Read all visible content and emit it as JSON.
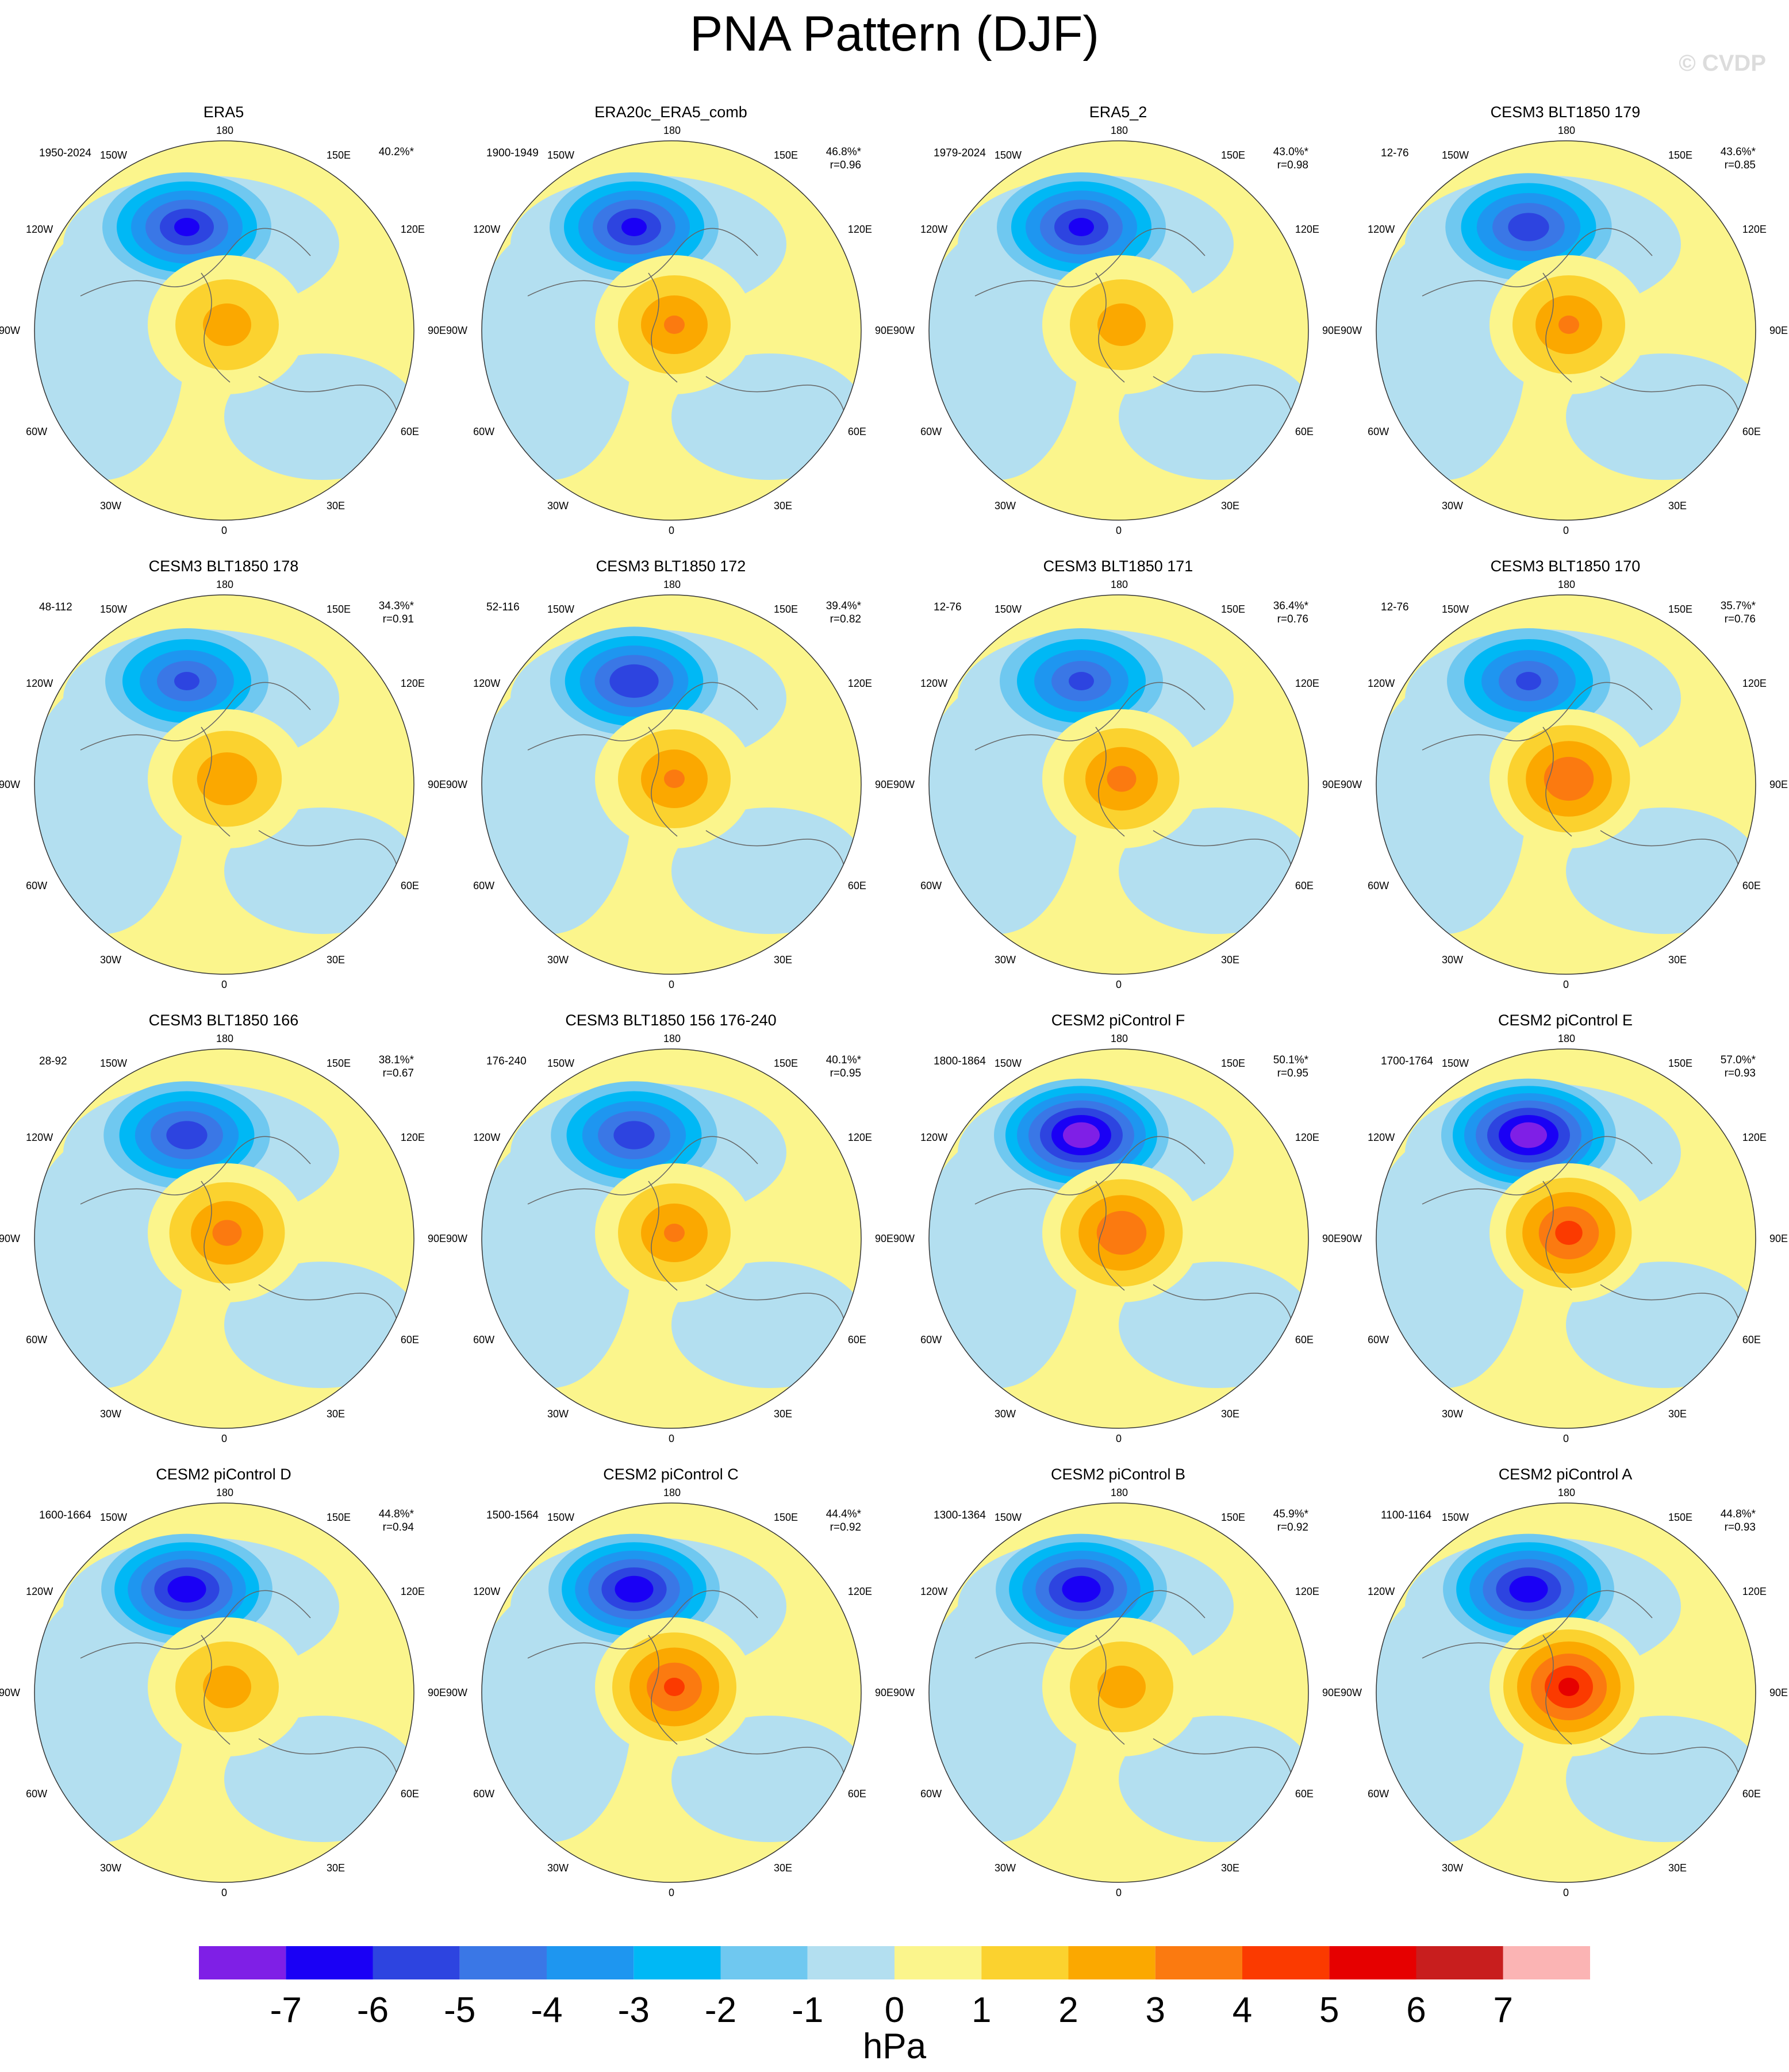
{
  "title": "PNA Pattern (DJF)",
  "watermark": "© CVDP",
  "unit": "hPa",
  "colorbar": {
    "labels": [
      "-7",
      "-6",
      "-5",
      "-4",
      "-3",
      "-2",
      "-1",
      "0",
      "1",
      "2",
      "3",
      "4",
      "5",
      "6",
      "7"
    ],
    "colors": [
      "#7f1fe6",
      "#1a00f5",
      "#2d44e0",
      "#3a77e6",
      "#1e96f0",
      "#00b8f5",
      "#6fc8f0",
      "#b3dff0",
      "#fbf58c",
      "#fbd22f",
      "#fba800",
      "#fb7a10",
      "#fb3a00",
      "#e60000",
      "#c81e1e",
      "#fbb4b4"
    ]
  },
  "lon_labels": {
    "top": "180",
    "bottom": "0",
    "left": [
      "150W",
      "120W",
      "90W",
      "60W",
      "30W"
    ],
    "right": [
      "150E",
      "120E",
      "90E",
      "60E",
      "30E"
    ]
  },
  "panels": [
    {
      "title": "ERA5",
      "period": "1950-2024",
      "pct": "40.2%*",
      "r": ""
    },
    {
      "title": "ERA20c_ERA5_comb",
      "period": "1900-1949",
      "pct": "46.8%*",
      "r": "r=0.96"
    },
    {
      "title": "ERA5_2",
      "period": "1979-2024",
      "pct": "43.0%*",
      "r": "r=0.98"
    },
    {
      "title": "CESM3 BLT1850 179",
      "period": "12-76",
      "pct": "43.6%*",
      "r": "r=0.85"
    },
    {
      "title": "CESM3 BLT1850 178",
      "period": "48-112",
      "pct": "34.3%*",
      "r": "r=0.91"
    },
    {
      "title": "CESM3 BLT1850 172",
      "period": "52-116",
      "pct": "39.4%*",
      "r": "r=0.82"
    },
    {
      "title": "CESM3 BLT1850 171",
      "period": "12-76",
      "pct": "36.4%*",
      "r": "r=0.76"
    },
    {
      "title": "CESM3 BLT1850 170",
      "period": "12-76",
      "pct": "35.7%*",
      "r": "r=0.76"
    },
    {
      "title": "CESM3 BLT1850 166",
      "period": "28-92",
      "pct": "38.1%*",
      "r": "r=0.67"
    },
    {
      "title": "CESM3 BLT1850 156 176-240",
      "period": "176-240",
      "pct": "40.1%*",
      "r": "r=0.95"
    },
    {
      "title": "CESM2 piControl F",
      "period": "1800-1864",
      "pct": "50.1%*",
      "r": "r=0.95"
    },
    {
      "title": "CESM2 piControl E",
      "period": "1700-1764",
      "pct": "57.0%*",
      "r": "r=0.93"
    },
    {
      "title": "CESM2 piControl D",
      "period": "1600-1664",
      "pct": "44.8%*",
      "r": "r=0.94"
    },
    {
      "title": "CESM2 piControl C",
      "period": "1500-1564",
      "pct": "44.4%*",
      "r": "r=0.92"
    },
    {
      "title": "CESM2 piControl B",
      "period": "1300-1364",
      "pct": "45.9%*",
      "r": "r=0.92"
    },
    {
      "title": "CESM2 piControl A",
      "period": "1100-1164",
      "pct": "44.8%*",
      "r": "r=0.93"
    }
  ],
  "field_params": [
    {
      "low": -6.0,
      "high": 2.5
    },
    {
      "low": -6.0,
      "high": 3.0
    },
    {
      "low": -6.0,
      "high": 2.5
    },
    {
      "low": -5.5,
      "high": 3.0
    },
    {
      "low": -5.0,
      "high": 2.8
    },
    {
      "low": -5.8,
      "high": 3.0
    },
    {
      "low": -5.0,
      "high": 3.2
    },
    {
      "low": -5.0,
      "high": 3.8
    },
    {
      "low": -5.5,
      "high": 3.2
    },
    {
      "low": -5.5,
      "high": 3.0
    },
    {
      "low": -7.5,
      "high": 3.8
    },
    {
      "low": -7.5,
      "high": 4.2
    },
    {
      "low": -6.5,
      "high": 2.5
    },
    {
      "low": -6.5,
      "high": 4.0
    },
    {
      "low": -6.5,
      "high": 2.5
    },
    {
      "low": -6.5,
      "high": 5.0
    }
  ]
}
